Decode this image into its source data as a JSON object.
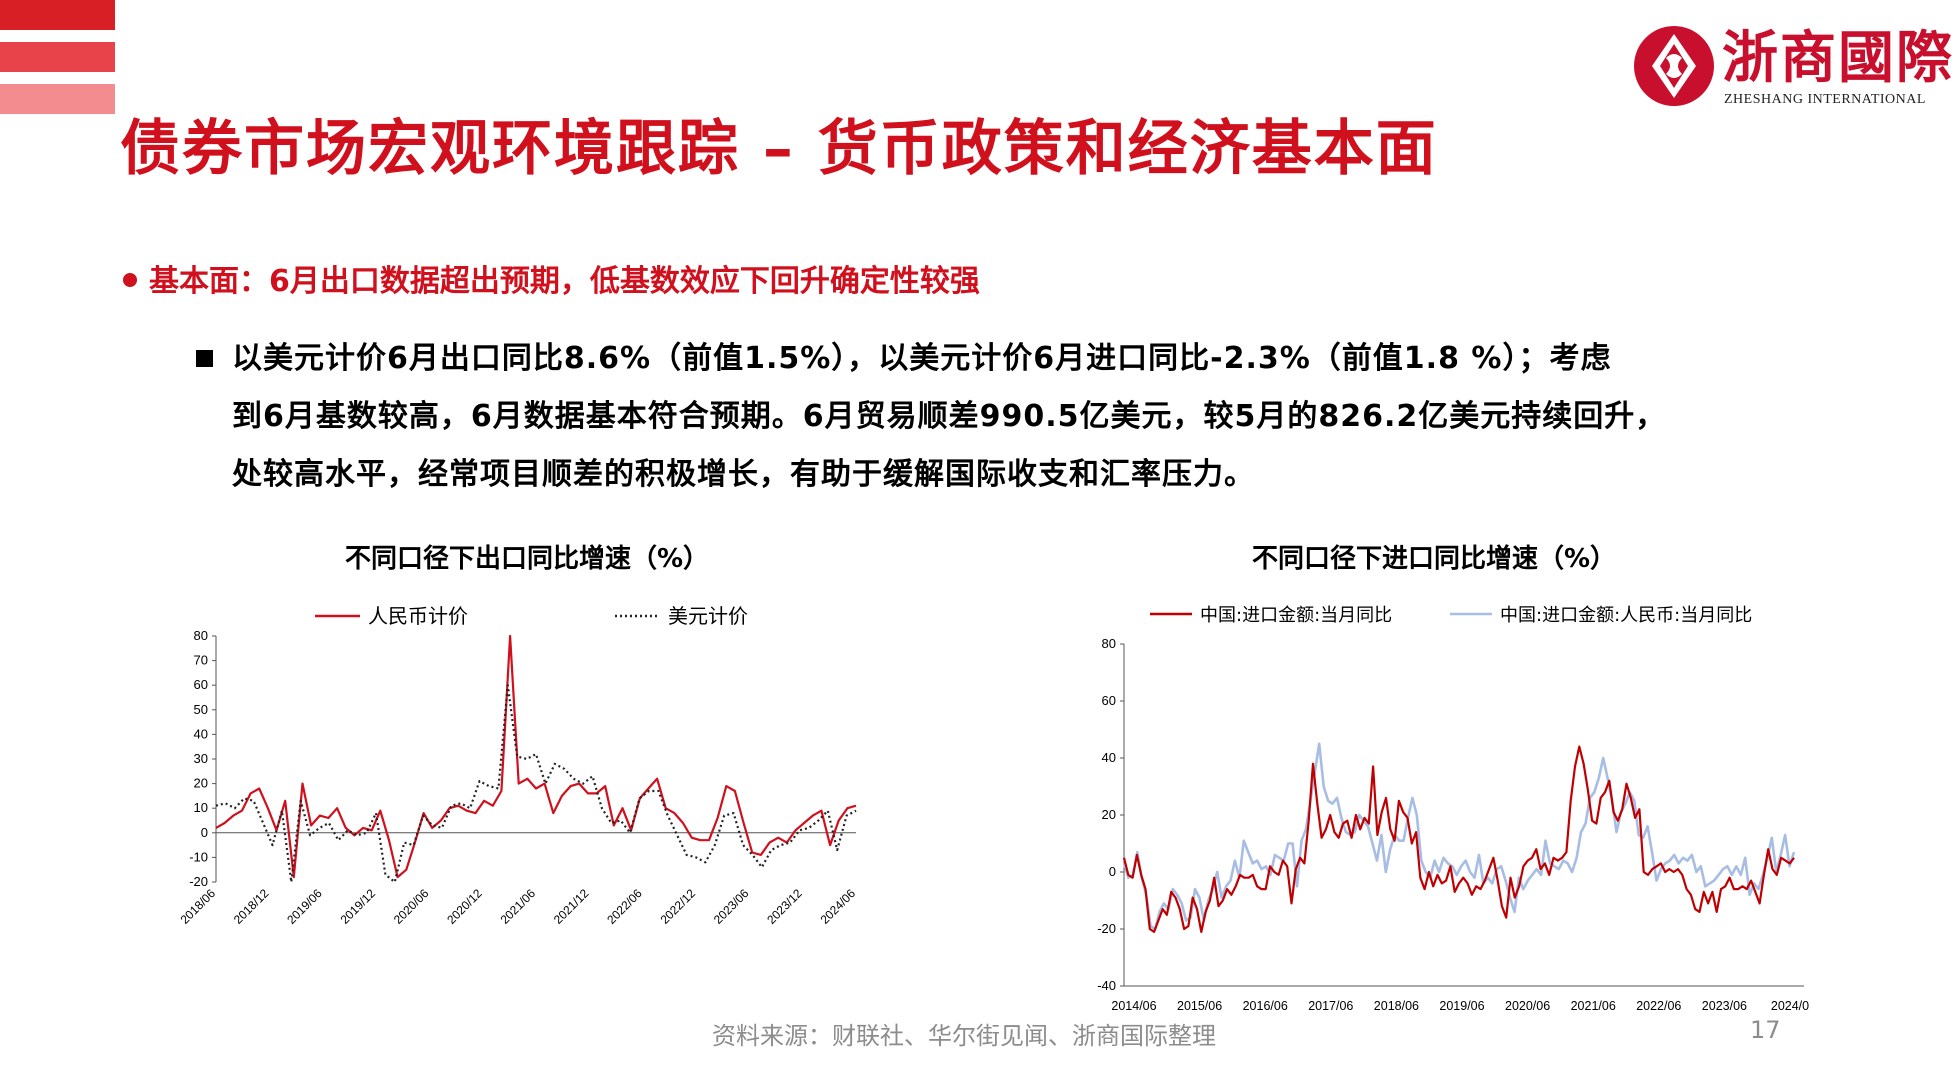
{
  "header": {
    "logo_text": "浙商國際",
    "logo_sub": "ZHESHANG INTERNATIONAL",
    "title": "债券市场宏观环境跟踪 – 货币政策和经济基本面",
    "corner_colors": [
      "#d81f26",
      "#e8434a",
      "#f28c8f"
    ]
  },
  "section": {
    "heading": "基本面：6月出口数据超出预期，低基数效应下回升确定性较强",
    "paragraph_lines": [
      "以美元计价6月出口同比8.6%（前值1.5%），以美元计价6月进口同比-2.3%（前值1.8 %）；考虑",
      "到6月基数较高，6月数据基本符合预期。6月贸易顺差990.5亿美元，较5月的826.2亿美元持续回升，",
      "处较高水平，经常项目顺差的积极增长，有助于缓解国际收支和汇率压力。"
    ]
  },
  "footer": {
    "source": "资料来源：财联社、华尔街见闻、浙商国际整理",
    "page_number": "17"
  },
  "chart_data": [
    {
      "type": "line",
      "title": "不同口径下出口同比增速（%）",
      "ylim": [
        -20,
        80
      ],
      "yticks": [
        "-20",
        "-10",
        "0",
        "10",
        "20",
        "30",
        "40",
        "50",
        "60",
        "70",
        "80"
      ],
      "x_start": "2018/06",
      "x_tick_labels": [
        "2018/06",
        "2018/12",
        "2019/06",
        "2019/12",
        "2020/06",
        "2020/12",
        "2021/06",
        "2021/12",
        "2022/06",
        "2022/12",
        "2023/06",
        "2023/12",
        "2024/06"
      ],
      "legend_position": "top",
      "grid": false,
      "series": [
        {
          "name": "人民币计价",
          "color": "#d0101d",
          "style": "solid",
          "values": [
            2,
            4,
            7,
            9,
            16,
            18,
            10,
            1,
            13,
            -18,
            20,
            3,
            7,
            6,
            10,
            2,
            -1,
            2,
            1,
            9,
            -3,
            -18,
            -15,
            -4,
            8,
            2,
            5,
            10,
            11,
            9,
            8,
            13,
            11,
            17,
            80,
            20,
            22,
            18,
            20,
            8,
            15,
            19,
            20,
            16,
            16,
            19,
            3,
            10,
            1,
            14,
            18,
            22,
            10,
            8,
            4,
            -2,
            -3,
            -3,
            6,
            19,
            17,
            4,
            -8,
            -9,
            -4,
            -2,
            -4,
            1,
            4,
            7,
            9,
            -5,
            5,
            10,
            11
          ]
        },
        {
          "name": "美元计价",
          "color": "#222222",
          "style": "dotted",
          "values": [
            11,
            12,
            10,
            14,
            13,
            4,
            -5,
            9,
            -20,
            13,
            -1,
            2,
            4,
            -3,
            1,
            -1,
            0,
            8,
            -17,
            -23,
            -4,
            -5,
            7,
            3,
            2,
            11,
            12,
            10,
            21,
            19,
            18,
            60,
            31,
            30,
            32,
            20,
            28,
            26,
            22,
            20,
            23,
            10,
            4,
            5,
            0,
            14,
            17,
            17,
            7,
            -1,
            -9,
            -10,
            -12,
            -5,
            7,
            8,
            -5,
            -9,
            -14,
            -7,
            -5,
            -4,
            1,
            2,
            5,
            9,
            -7,
            7,
            9
          ]
        }
      ]
    },
    {
      "type": "line",
      "title": "不同口径下进口同比增速（%）",
      "ylim": [
        -40,
        80
      ],
      "yticks": [
        "-40",
        "-20",
        "0",
        "20",
        "40",
        "60",
        "80"
      ],
      "x_start": "2014/06",
      "x_tick_labels": [
        "2014/06",
        "2015/06",
        "2016/06",
        "2017/06",
        "2018/06",
        "2019/06",
        "2020/06",
        "2021/06",
        "2022/06",
        "2023/06",
        "2024/0"
      ],
      "legend_position": "top",
      "grid": false,
      "series": [
        {
          "name": "中国:进口金额:当月同比",
          "color": "#c00000",
          "style": "solid",
          "values": [
            5,
            -1,
            -2,
            6,
            -1,
            -6,
            -20,
            -21,
            -17,
            -13,
            -15,
            -7,
            -9,
            -13,
            -20,
            -19,
            -9,
            -13,
            -21,
            -14,
            -10,
            -2,
            -12,
            -10,
            -6,
            -8,
            -5,
            -1,
            -2,
            -2,
            -1,
            -5,
            -6,
            -6,
            2,
            0,
            -1,
            4,
            2,
            -11,
            1,
            5,
            3,
            18,
            38,
            24,
            12,
            15,
            20,
            14,
            12,
            17,
            18,
            12,
            20,
            15,
            19,
            17,
            37,
            13,
            21,
            26,
            15,
            11,
            25,
            21,
            19,
            10,
            14,
            -2,
            -6,
            0,
            -5,
            -1,
            -4,
            -3,
            2,
            -7,
            -4,
            -2,
            -4,
            -8,
            -5,
            -6,
            -3,
            1,
            5,
            -3,
            -12,
            -16,
            -2,
            -9,
            -5,
            2,
            4,
            5,
            8,
            1,
            3,
            -1,
            5,
            4,
            5,
            7,
            25,
            37,
            44,
            38,
            29,
            18,
            17,
            26,
            28,
            32,
            21,
            18,
            22,
            31,
            26,
            19,
            22,
            0,
            -1,
            1,
            2,
            3,
            0,
            1,
            0,
            1,
            -1,
            -6,
            -8,
            -13,
            -14,
            -7,
            -11,
            -7,
            -14,
            -6,
            -5,
            -2,
            -6,
            -6,
            -5,
            -6,
            -3,
            -7,
            -11,
            -1,
            8,
            1,
            -1,
            5,
            4,
            3,
            5
          ]
        },
        {
          "name": "中国:进口金额:人民币:当月同比",
          "color": "#a8bde3",
          "style": "solid",
          "values": [
            3,
            -2,
            -1,
            7,
            -2,
            -8,
            -19,
            -20,
            -14,
            -11,
            -13,
            -6,
            -8,
            -11,
            -17,
            -16,
            -6,
            -9,
            -17,
            -10,
            -6,
            0,
            -9,
            -5,
            -3,
            4,
            -2,
            11,
            7,
            3,
            4,
            1,
            2,
            -1,
            6,
            5,
            4,
            10,
            10,
            -5,
            11,
            15,
            25,
            35,
            45,
            30,
            25,
            24,
            26,
            19,
            14,
            13,
            14,
            20,
            18,
            16,
            10,
            4,
            13,
            0,
            8,
            13,
            11,
            11,
            19,
            26,
            20,
            4,
            0,
            -2,
            4,
            0,
            5,
            3,
            2,
            -1,
            2,
            4,
            0,
            -2,
            6,
            -4,
            -2,
            -4,
            1,
            2,
            -3,
            -9,
            -14,
            -2,
            -6,
            -3,
            -1,
            1,
            -1,
            11,
            3,
            2,
            1,
            4,
            3,
            0,
            5,
            14,
            17,
            26,
            28,
            33,
            40,
            33,
            25,
            14,
            21,
            24,
            28,
            25,
            13,
            12,
            16,
            7,
            -3,
            1,
            3,
            4,
            6,
            3,
            5,
            4,
            6,
            0,
            2,
            -5,
            -4,
            -3,
            -1,
            1,
            2,
            -1,
            2,
            -1,
            5,
            -8,
            -4,
            -6,
            -1,
            5,
            12,
            0,
            6,
            13,
            2,
            7
          ]
        }
      ]
    }
  ]
}
